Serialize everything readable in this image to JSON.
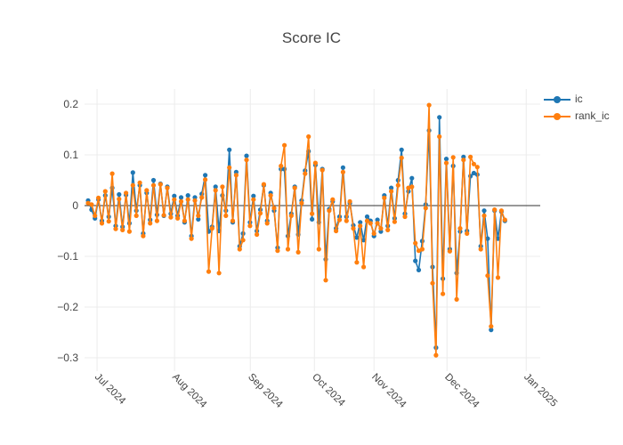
{
  "title": "Score IC",
  "legend": {
    "items": [
      {
        "label": "ic",
        "color": "#1f77b4"
      },
      {
        "label": "rank_ic",
        "color": "#ff7f0e"
      }
    ]
  },
  "colors": {
    "grid": "#ececec",
    "zero_line": "#333333",
    "tick_text": "#444444",
    "title_text": "#444444",
    "background": "#ffffff"
  },
  "chart_data": {
    "type": "line",
    "title": "Score IC",
    "xlabel": "",
    "ylabel": "",
    "grid": true,
    "legend_position": "top-right-outside",
    "marker_mode": "lines+markers",
    "ylim": [
      -0.3175,
      0.23
    ],
    "x_is_index": true,
    "x_range_note": "daily trading values, Jul 2024 through end of Dec 2024",
    "xticks": [
      {
        "label": "Jul 2024",
        "i": 2.6
      },
      {
        "label": "Aug 2024",
        "i": 25.1
      },
      {
        "label": "Sep 2024",
        "i": 47.1
      },
      {
        "label": "Oct 2024",
        "i": 65.7
      },
      {
        "label": "Nov 2024",
        "i": 83.0
      },
      {
        "label": "Dec 2024",
        "i": 104.2
      },
      {
        "label": "Jan 2025",
        "i": 127.2
      }
    ],
    "yticks": [
      {
        "v": 0.2,
        "label": "0.2"
      },
      {
        "v": 0.1,
        "label": "0.1"
      },
      {
        "v": 0,
        "label": "0"
      },
      {
        "v": -0.1,
        "label": "−0.1"
      },
      {
        "v": -0.2,
        "label": "−0.2"
      },
      {
        "v": -0.3,
        "label": "−0.3"
      }
    ],
    "series": [
      {
        "name": "ic",
        "color": "#1f77b4",
        "values": [
          0.01,
          -0.008,
          -0.025,
          0.012,
          -0.03,
          0.02,
          -0.022,
          0.035,
          -0.04,
          0.022,
          -0.042,
          0.021,
          -0.035,
          0.065,
          -0.01,
          0.04,
          -0.055,
          0.025,
          -0.028,
          0.05,
          -0.018,
          0.043,
          -0.02,
          0.037,
          -0.016,
          0.019,
          -0.02,
          0.016,
          -0.033,
          0.02,
          -0.06,
          0.016,
          -0.027,
          0.023,
          0.06,
          -0.051,
          -0.042,
          0.037,
          -0.05,
          0.02,
          -0.01,
          0.11,
          -0.033,
          0.066,
          -0.08,
          -0.055,
          0.098,
          -0.033,
          0.019,
          -0.05,
          -0.008,
          0.04,
          -0.03,
          0.025,
          -0.01,
          -0.083,
          0.072,
          0.072,
          -0.06,
          -0.016,
          0.037,
          -0.057,
          0.01,
          0.069,
          0.107,
          -0.027,
          0.08,
          -0.033,
          0.072,
          -0.106,
          -0.007,
          0.008,
          -0.045,
          -0.022,
          0.075,
          -0.022,
          0.005,
          -0.039,
          -0.063,
          -0.033,
          -0.068,
          -0.022,
          -0.03,
          -0.06,
          -0.028,
          -0.051,
          0.02,
          -0.04,
          0.035,
          -0.025,
          0.05,
          0.11,
          -0.016,
          0.028,
          0.054,
          -0.109,
          -0.127,
          -0.07,
          0.002,
          0.148,
          -0.121,
          -0.28,
          0.174,
          -0.144,
          0.092,
          -0.086,
          0.078,
          -0.133,
          -0.051,
          0.096,
          -0.05,
          0.058,
          0.064,
          0.061,
          -0.08,
          -0.01,
          -0.065,
          -0.245,
          -0.01,
          -0.065,
          -0.012,
          -0.03
        ]
      },
      {
        "name": "rank_ic",
        "color": "#ff7f0e",
        "values": [
          0.005,
          0.002,
          -0.02,
          0.015,
          -0.035,
          0.028,
          -0.031,
          0.063,
          -0.046,
          0.013,
          -0.048,
          0.025,
          -0.051,
          0.04,
          -0.02,
          0.045,
          -0.06,
          0.03,
          -0.035,
          0.04,
          -0.03,
          0.042,
          -0.019,
          0.035,
          -0.023,
          0.012,
          -0.025,
          0.008,
          -0.03,
          0.012,
          -0.065,
          0.01,
          -0.02,
          0.016,
          0.051,
          -0.13,
          -0.045,
          0.03,
          -0.133,
          0.037,
          -0.02,
          0.075,
          -0.03,
          0.06,
          -0.086,
          -0.068,
          0.09,
          -0.04,
          0.012,
          -0.057,
          -0.015,
          0.042,
          -0.035,
          0.02,
          -0.005,
          -0.089,
          0.078,
          0.119,
          -0.086,
          -0.02,
          0.035,
          -0.092,
          0.005,
          0.063,
          0.136,
          -0.016,
          0.084,
          -0.086,
          0.07,
          -0.147,
          -0.01,
          0.012,
          -0.05,
          -0.028,
          0.066,
          -0.03,
          0.008,
          -0.045,
          -0.112,
          -0.04,
          -0.121,
          -0.03,
          -0.035,
          -0.055,
          -0.035,
          -0.045,
          0.015,
          -0.048,
          0.028,
          -0.032,
          0.04,
          0.094,
          -0.022,
          0.035,
          0.037,
          -0.074,
          -0.089,
          -0.086,
          -0.005,
          0.198,
          -0.153,
          -0.295,
          0.136,
          -0.174,
          0.084,
          -0.09,
          0.095,
          -0.185,
          -0.045,
          0.09,
          -0.055,
          0.096,
          0.082,
          0.076,
          -0.086,
          -0.02,
          -0.138,
          -0.238,
          -0.008,
          -0.142,
          -0.01,
          -0.028
        ]
      }
    ]
  }
}
